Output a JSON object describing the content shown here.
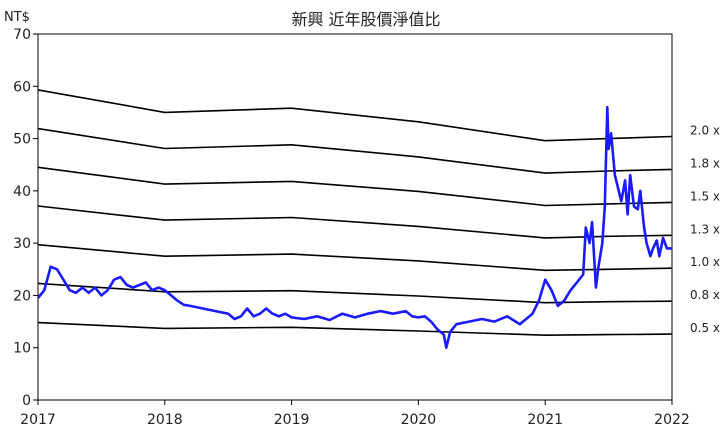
{
  "chart_data": {
    "type": "line",
    "title": "新興 近年股價淨值比",
    "ylabel": "NT$",
    "xlabel": "",
    "x_ticks": [
      "2017",
      "2018",
      "2019",
      "2020",
      "2021",
      "2022"
    ],
    "y_ticks": [
      0,
      10,
      20,
      30,
      40,
      50,
      60,
      70
    ],
    "xlim": [
      2017.0,
      2022.0
    ],
    "ylim": [
      0,
      70
    ],
    "grid": false,
    "series": [
      {
        "name": "0.5 x",
        "color": "#000000",
        "points": [
          [
            2017.0,
            14.8
          ],
          [
            2018.0,
            13.7
          ],
          [
            2019.0,
            13.9
          ],
          [
            2020.0,
            13.2
          ],
          [
            2021.0,
            12.4
          ],
          [
            2021.5,
            12.5
          ],
          [
            2022.0,
            12.6
          ]
        ]
      },
      {
        "name": "0.8 x",
        "color": "#000000",
        "points": [
          [
            2017.0,
            22.3
          ],
          [
            2018.0,
            20.7
          ],
          [
            2019.0,
            20.9
          ],
          [
            2020.0,
            19.9
          ],
          [
            2021.0,
            18.6
          ],
          [
            2021.5,
            18.8
          ],
          [
            2022.0,
            18.9
          ]
        ]
      },
      {
        "name": "1.0 x",
        "color": "#000000",
        "points": [
          [
            2017.0,
            29.7
          ],
          [
            2018.0,
            27.5
          ],
          [
            2019.0,
            27.9
          ],
          [
            2020.0,
            26.6
          ],
          [
            2021.0,
            24.8
          ],
          [
            2021.5,
            25.0
          ],
          [
            2022.0,
            25.2
          ]
        ]
      },
      {
        "name": "1.3 x",
        "color": "#000000",
        "points": [
          [
            2017.0,
            37.1
          ],
          [
            2018.0,
            34.4
          ],
          [
            2019.0,
            34.9
          ],
          [
            2020.0,
            33.2
          ],
          [
            2021.0,
            31.0
          ],
          [
            2021.5,
            31.3
          ],
          [
            2022.0,
            31.5
          ]
        ]
      },
      {
        "name": "1.5 x",
        "color": "#000000",
        "points": [
          [
            2017.0,
            44.5
          ],
          [
            2018.0,
            41.3
          ],
          [
            2019.0,
            41.8
          ],
          [
            2020.0,
            39.9
          ],
          [
            2021.0,
            37.2
          ],
          [
            2021.5,
            37.5
          ],
          [
            2022.0,
            37.8
          ]
        ]
      },
      {
        "name": "1.8 x",
        "color": "#000000",
        "points": [
          [
            2017.0,
            51.9
          ],
          [
            2018.0,
            48.1
          ],
          [
            2019.0,
            48.8
          ],
          [
            2020.0,
            46.5
          ],
          [
            2021.0,
            43.4
          ],
          [
            2021.5,
            43.8
          ],
          [
            2022.0,
            44.1
          ]
        ]
      },
      {
        "name": "2.0 x",
        "color": "#000000",
        "points": [
          [
            2017.0,
            59.3
          ],
          [
            2018.0,
            55.0
          ],
          [
            2019.0,
            55.8
          ],
          [
            2020.0,
            53.2
          ],
          [
            2021.0,
            49.6
          ],
          [
            2021.5,
            50.0
          ],
          [
            2022.0,
            50.4
          ]
        ]
      },
      {
        "name": "",
        "color": "#1a1aff",
        "points": [
          [
            2017.0,
            19.5
          ],
          [
            2017.05,
            21.0
          ],
          [
            2017.1,
            25.5
          ],
          [
            2017.15,
            25.0
          ],
          [
            2017.2,
            23.0
          ],
          [
            2017.25,
            21.0
          ],
          [
            2017.3,
            20.5
          ],
          [
            2017.35,
            21.5
          ],
          [
            2017.4,
            20.5
          ],
          [
            2017.45,
            21.5
          ],
          [
            2017.5,
            20.0
          ],
          [
            2017.55,
            21.0
          ],
          [
            2017.6,
            23.0
          ],
          [
            2017.65,
            23.5
          ],
          [
            2017.7,
            22.0
          ],
          [
            2017.75,
            21.5
          ],
          [
            2017.8,
            22.0
          ],
          [
            2017.85,
            22.5
          ],
          [
            2017.9,
            21.0
          ],
          [
            2017.95,
            21.5
          ],
          [
            2018.0,
            21.0
          ],
          [
            2018.05,
            20.0
          ],
          [
            2018.1,
            19.0
          ],
          [
            2018.15,
            18.2
          ],
          [
            2018.2,
            18.0
          ],
          [
            2018.3,
            17.5
          ],
          [
            2018.4,
            17.0
          ],
          [
            2018.5,
            16.5
          ],
          [
            2018.55,
            15.5
          ],
          [
            2018.6,
            16.0
          ],
          [
            2018.65,
            17.5
          ],
          [
            2018.7,
            16.0
          ],
          [
            2018.75,
            16.5
          ],
          [
            2018.8,
            17.5
          ],
          [
            2018.85,
            16.5
          ],
          [
            2018.9,
            16.0
          ],
          [
            2018.95,
            16.5
          ],
          [
            2019.0,
            15.8
          ],
          [
            2019.1,
            15.5
          ],
          [
            2019.2,
            16.0
          ],
          [
            2019.3,
            15.3
          ],
          [
            2019.4,
            16.5
          ],
          [
            2019.5,
            15.8
          ],
          [
            2019.6,
            16.5
          ],
          [
            2019.7,
            17.0
          ],
          [
            2019.8,
            16.5
          ],
          [
            2019.9,
            17.0
          ],
          [
            2019.95,
            16.0
          ],
          [
            2020.0,
            15.8
          ],
          [
            2020.05,
            16.0
          ],
          [
            2020.1,
            15.0
          ],
          [
            2020.15,
            13.5
          ],
          [
            2020.2,
            12.5
          ],
          [
            2020.22,
            10.0
          ],
          [
            2020.25,
            13.0
          ],
          [
            2020.3,
            14.5
          ],
          [
            2020.4,
            15.0
          ],
          [
            2020.5,
            15.5
          ],
          [
            2020.6,
            15.0
          ],
          [
            2020.7,
            16.0
          ],
          [
            2020.8,
            14.5
          ],
          [
            2020.85,
            15.5
          ],
          [
            2020.9,
            16.5
          ],
          [
            2020.95,
            19.0
          ],
          [
            2021.0,
            23.0
          ],
          [
            2021.05,
            21.0
          ],
          [
            2021.1,
            18.0
          ],
          [
            2021.15,
            19.0
          ],
          [
            2021.2,
            21.0
          ],
          [
            2021.25,
            22.5
          ],
          [
            2021.3,
            24.0
          ],
          [
            2021.32,
            33.0
          ],
          [
            2021.35,
            30.0
          ],
          [
            2021.37,
            34.0
          ],
          [
            2021.4,
            21.5
          ],
          [
            2021.42,
            25.5
          ],
          [
            2021.45,
            30.0
          ],
          [
            2021.47,
            37.0
          ],
          [
            2021.49,
            56.0
          ],
          [
            2021.5,
            48.0
          ],
          [
            2021.52,
            51.0
          ],
          [
            2021.55,
            43.0
          ],
          [
            2021.6,
            38.0
          ],
          [
            2021.63,
            42.0
          ],
          [
            2021.65,
            35.5
          ],
          [
            2021.67,
            43.0
          ],
          [
            2021.7,
            37.0
          ],
          [
            2021.73,
            36.5
          ],
          [
            2021.75,
            40.0
          ],
          [
            2021.78,
            33.0
          ],
          [
            2021.8,
            30.0
          ],
          [
            2021.83,
            27.5
          ],
          [
            2021.85,
            29.0
          ],
          [
            2021.88,
            30.5
          ],
          [
            2021.9,
            27.5
          ],
          [
            2021.93,
            31.0
          ],
          [
            2021.96,
            29.0
          ],
          [
            2022.0,
            29.0
          ]
        ]
      }
    ]
  }
}
